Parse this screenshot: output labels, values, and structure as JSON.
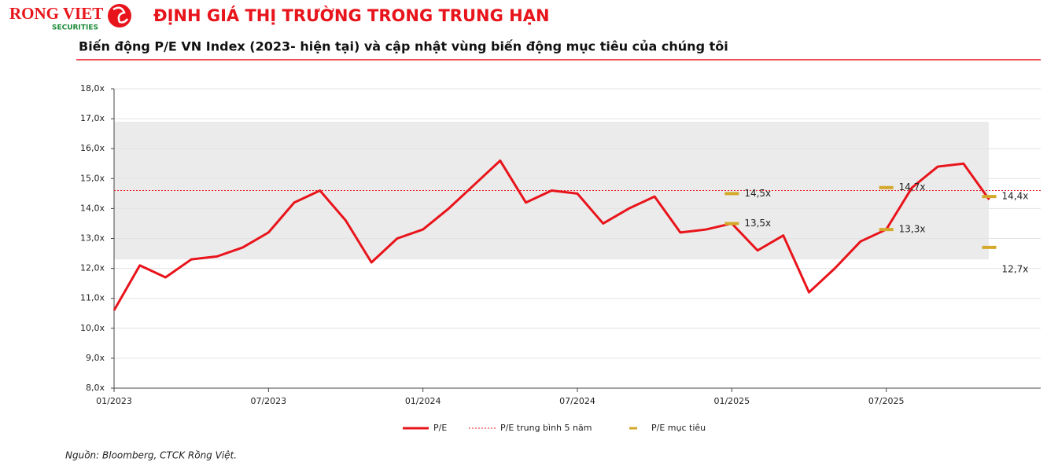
{
  "header": {
    "logo": "RONG VIET",
    "logo_sub": "SECURITIES",
    "title": "ĐỊNH GIÁ THỊ TRƯỜNG TRONG TRUNG HẠN",
    "subtitle": "Biến động P/E VN Index (2023- hiện tại) và cập nhật  vùng biến động mục tiêu của chúng tôi"
  },
  "chart_data": {
    "type": "line",
    "x": [
      "2023-01",
      "2023-02",
      "2023-03",
      "2023-04",
      "2023-05",
      "2023-06",
      "2023-07",
      "2023-08",
      "2023-09",
      "2023-10",
      "2023-11",
      "2023-12",
      "2024-01",
      "2024-02",
      "2024-03",
      "2024-04",
      "2024-05",
      "2024-06",
      "2024-07",
      "2024-08",
      "2024-09",
      "2024-10",
      "2024-11",
      "2024-12",
      "2025-01",
      "2025-02",
      "2025-03",
      "2025-04",
      "2025-05",
      "2025-06",
      "2025-07",
      "2025-08",
      "2025-09",
      "2025-10",
      "2025-11"
    ],
    "series": [
      {
        "name": "P/E",
        "color": "#e8141b",
        "values": [
          10.6,
          12.1,
          11.7,
          12.3,
          12.4,
          12.7,
          13.2,
          14.2,
          14.6,
          13.6,
          12.2,
          13.0,
          13.3,
          14.0,
          14.8,
          15.6,
          14.2,
          14.6,
          14.5,
          13.5,
          14.0,
          14.4,
          13.2,
          13.3,
          13.5,
          12.6,
          13.1,
          11.2,
          12.0,
          12.9,
          13.3,
          14.7,
          15.4,
          15.5,
          14.3
        ]
      }
    ],
    "mean_line": {
      "name": "P/E trung bình 5 năm",
      "color": "#e8141b",
      "value": 14.6
    },
    "band": {
      "low": 12.3,
      "high": 16.9,
      "color": "#ebebeb"
    },
    "targets": {
      "name": "P/E mục tiêu",
      "color": "#d4a82a",
      "x": [
        "2025-01",
        "2025-01",
        "2025-07",
        "2025-07",
        "2025-11",
        "2025-11"
      ],
      "values": [
        14.5,
        13.5,
        14.7,
        13.3,
        14.4,
        12.7
      ],
      "value_labels": [
        "14,5x",
        "13,5x",
        "14,7x",
        "13,3x",
        "14,4x",
        "12,7x"
      ]
    },
    "xlim": [
      "2023-01",
      "2026-01"
    ],
    "xticks": [
      {
        "value": "2023-01",
        "label": "01/2023"
      },
      {
        "value": "2023-07",
        "label": "07/2023"
      },
      {
        "value": "2024-01",
        "label": "01/2024"
      },
      {
        "value": "2024-07",
        "label": "07/2024"
      },
      {
        "value": "2025-01",
        "label": "01/2025"
      },
      {
        "value": "2025-07",
        "label": "07/2025"
      }
    ],
    "ylim": [
      8,
      18
    ],
    "yticks": [
      {
        "value": 8,
        "label": "8,0x"
      },
      {
        "value": 9,
        "label": "9,0x"
      },
      {
        "value": 10,
        "label": "10,0x"
      },
      {
        "value": 11,
        "label": "11,0x"
      },
      {
        "value": 12,
        "label": "12,0x"
      },
      {
        "value": 13,
        "label": "13,0x"
      },
      {
        "value": 14,
        "label": "14,0x"
      },
      {
        "value": 15,
        "label": "15,0x"
      },
      {
        "value": 16,
        "label": "16,0x"
      },
      {
        "value": 17,
        "label": "17,0x"
      },
      {
        "value": 18,
        "label": "18,0x"
      }
    ],
    "grid": true
  },
  "footer": {
    "source": "Nguồn: Bloomberg, CTCK Rồng Việt."
  }
}
